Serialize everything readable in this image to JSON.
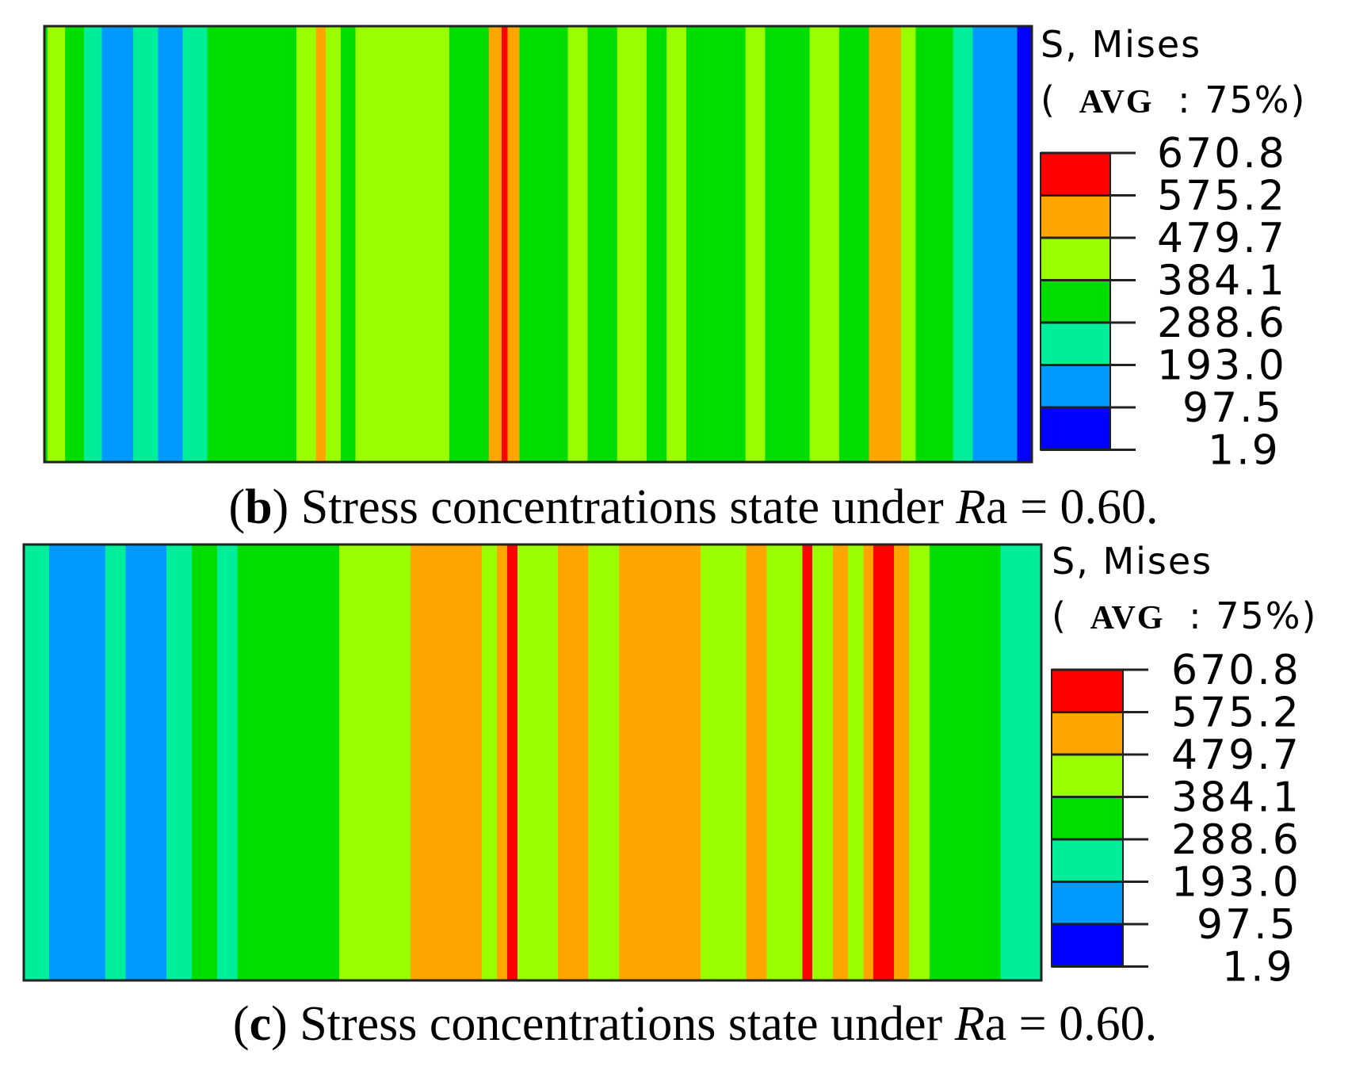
{
  "chart_data": [
    {
      "type": "heatmap",
      "panel_label": "b",
      "caption": {
        "open": "(",
        "label": "b",
        "text": ") Stress concentrations state under ",
        "var_italic": "R",
        "var_rest": "a",
        "rest": " = 0.60."
      },
      "legend": {
        "title_line1": "S, Mises",
        "title_line2_open": "(",
        "title_line2_avg": "AVG",
        "title_line2_rest": ": 75%)",
        "levels": [
          "670.8",
          "575.2",
          "479.7",
          "384.1",
          "288.6",
          "193.0",
          "97.5",
          "1.9"
        ]
      },
      "x_profile": [
        {
          "x": 0.0,
          "v": 380
        },
        {
          "x": 0.006,
          "v": 470
        },
        {
          "x": 0.012,
          "v": 400
        },
        {
          "x": 0.03,
          "v": 330
        },
        {
          "x": 0.05,
          "v": 240
        },
        {
          "x": 0.066,
          "v": 110
        },
        {
          "x": 0.08,
          "v": 180
        },
        {
          "x": 0.1,
          "v": 250
        },
        {
          "x": 0.13,
          "v": 180
        },
        {
          "x": 0.15,
          "v": 250
        },
        {
          "x": 0.18,
          "v": 320
        },
        {
          "x": 0.2,
          "v": 370
        },
        {
          "x": 0.24,
          "v": 350
        },
        {
          "x": 0.27,
          "v": 420
        },
        {
          "x": 0.28,
          "v": 520
        },
        {
          "x": 0.29,
          "v": 420
        },
        {
          "x": 0.31,
          "v": 350
        },
        {
          "x": 0.32,
          "v": 400
        },
        {
          "x": 0.35,
          "v": 430
        },
        {
          "x": 0.38,
          "v": 450
        },
        {
          "x": 0.4,
          "v": 420
        },
        {
          "x": 0.42,
          "v": 350
        },
        {
          "x": 0.44,
          "v": 380
        },
        {
          "x": 0.46,
          "v": 500
        },
        {
          "x": 0.466,
          "v": 640
        },
        {
          "x": 0.472,
          "v": 500
        },
        {
          "x": 0.49,
          "v": 380
        },
        {
          "x": 0.52,
          "v": 330
        },
        {
          "x": 0.54,
          "v": 400
        },
        {
          "x": 0.56,
          "v": 350
        },
        {
          "x": 0.6,
          "v": 420
        },
        {
          "x": 0.62,
          "v": 350
        },
        {
          "x": 0.64,
          "v": 440
        },
        {
          "x": 0.66,
          "v": 380
        },
        {
          "x": 0.7,
          "v": 360
        },
        {
          "x": 0.72,
          "v": 410
        },
        {
          "x": 0.74,
          "v": 350
        },
        {
          "x": 0.76,
          "v": 330
        },
        {
          "x": 0.79,
          "v": 430
        },
        {
          "x": 0.82,
          "v": 380
        },
        {
          "x": 0.85,
          "v": 480
        },
        {
          "x": 0.86,
          "v": 560
        },
        {
          "x": 0.875,
          "v": 460
        },
        {
          "x": 0.89,
          "v": 360
        },
        {
          "x": 0.91,
          "v": 300
        },
        {
          "x": 0.93,
          "v": 250
        },
        {
          "x": 0.95,
          "v": 170
        },
        {
          "x": 0.97,
          "v": 120
        },
        {
          "x": 1.0,
          "v": 40
        }
      ]
    },
    {
      "type": "heatmap",
      "panel_label": "c",
      "caption": {
        "open": "(",
        "label": "c",
        "text": ") Stress concentrations state under ",
        "var_italic": "R",
        "var_rest": "a",
        "rest": " = 0.60."
      },
      "legend": {
        "title_line1": "S, Mises",
        "title_line2_open": "(",
        "title_line2_avg": "AVG",
        "title_line2_rest": ": 75%)",
        "levels": [
          "670.8",
          "575.2",
          "479.7",
          "384.1",
          "288.6",
          "193.0",
          "97.5",
          "1.9"
        ]
      },
      "x_profile": [
        {
          "x": 0.0,
          "v": 200
        },
        {
          "x": 0.05,
          "v": 170
        },
        {
          "x": 0.07,
          "v": 120
        },
        {
          "x": 0.09,
          "v": 200
        },
        {
          "x": 0.11,
          "v": 130
        },
        {
          "x": 0.13,
          "v": 190
        },
        {
          "x": 0.15,
          "v": 260
        },
        {
          "x": 0.18,
          "v": 320
        },
        {
          "x": 0.2,
          "v": 280
        },
        {
          "x": 0.22,
          "v": 350
        },
        {
          "x": 0.26,
          "v": 330
        },
        {
          "x": 0.3,
          "v": 380
        },
        {
          "x": 0.32,
          "v": 410
        },
        {
          "x": 0.36,
          "v": 440
        },
        {
          "x": 0.4,
          "v": 480
        },
        {
          "x": 0.44,
          "v": 500
        },
        {
          "x": 0.46,
          "v": 420
        },
        {
          "x": 0.47,
          "v": 570
        },
        {
          "x": 0.48,
          "v": 600
        },
        {
          "x": 0.49,
          "v": 470
        },
        {
          "x": 0.51,
          "v": 430
        },
        {
          "x": 0.54,
          "v": 500
        },
        {
          "x": 0.57,
          "v": 460
        },
        {
          "x": 0.6,
          "v": 520
        },
        {
          "x": 0.62,
          "v": 540
        },
        {
          "x": 0.65,
          "v": 550
        },
        {
          "x": 0.68,
          "v": 470
        },
        {
          "x": 0.7,
          "v": 430
        },
        {
          "x": 0.72,
          "v": 480
        },
        {
          "x": 0.74,
          "v": 400
        },
        {
          "x": 0.76,
          "v": 450
        },
        {
          "x": 0.77,
          "v": 580
        },
        {
          "x": 0.78,
          "v": 420
        },
        {
          "x": 0.79,
          "v": 450
        },
        {
          "x": 0.8,
          "v": 520
        },
        {
          "x": 0.82,
          "v": 470
        },
        {
          "x": 0.83,
          "v": 560
        },
        {
          "x": 0.84,
          "v": 620
        },
        {
          "x": 0.85,
          "v": 590
        },
        {
          "x": 0.86,
          "v": 500
        },
        {
          "x": 0.88,
          "v": 400
        },
        {
          "x": 0.9,
          "v": 380
        },
        {
          "x": 0.93,
          "v": 350
        },
        {
          "x": 0.95,
          "v": 300
        },
        {
          "x": 0.97,
          "v": 250
        },
        {
          "x": 1.0,
          "v": 230
        }
      ]
    }
  ],
  "colors": {
    "band_colors": [
      "#ff0000",
      "#ffa500",
      "#99ff00",
      "#00dd00",
      "#00ee99",
      "#0099ff",
      "#0000ff"
    ],
    "band_edges": [
      670.8,
      575.2,
      479.7,
      384.1,
      288.6,
      193.0,
      97.5,
      1.9
    ]
  }
}
